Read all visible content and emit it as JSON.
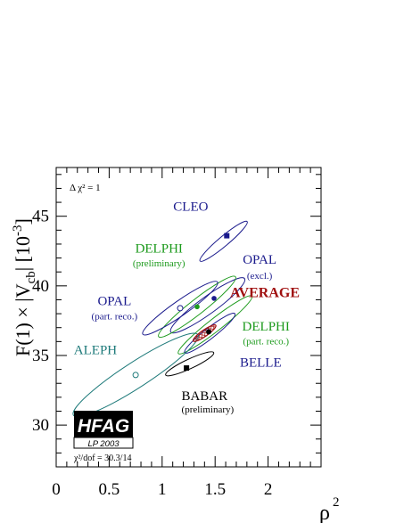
{
  "chart_data": {
    "type": "scatter",
    "xlabel": "ρ",
    "xlabel_exp": "2",
    "ylabel": "F(1) × |V",
    "ylabel_sub": "cb",
    "ylabel_tail": "| [10",
    "ylabel_exp": "-3",
    "ylabel_close": "]",
    "xlim": [
      0,
      2.5
    ],
    "ylim": [
      27,
      48.5
    ],
    "x_ticks": [
      "0",
      "0.5",
      "1",
      "1.5",
      "2"
    ],
    "y_ticks": [
      "30",
      "35",
      "40",
      "45"
    ],
    "delta_chi2": "Δ χ² = 1",
    "footer_chi2": "χ²/dof = 30.3/14",
    "badge": {
      "name": "HFAG",
      "sub": "LP 2003"
    },
    "series": [
      {
        "name": "CLEO",
        "sublabel": "",
        "x": 1.61,
        "y": 43.6,
        "color": "#1a1a8c",
        "marker": "square",
        "ellipse": {
          "cx": 1.58,
          "cy": 43.2,
          "a": 0.29,
          "b": 0.046,
          "angle": 40
        },
        "label_pos": [
          1.27,
          45.4
        ],
        "sublabel_pos": null,
        "anchor": "middle"
      },
      {
        "name": "OPAL",
        "sublabel": "(excl.)",
        "x": 1.49,
        "y": 39.1,
        "color": "#1a1a8c",
        "marker": "dot",
        "ellipse": {
          "cx": 1.43,
          "cy": 38.6,
          "a": 0.43,
          "b": 0.08,
          "angle": 36
        },
        "label_pos": [
          1.92,
          41.6
        ],
        "sublabel_pos": [
          1.92,
          40.5
        ],
        "anchor": "middle"
      },
      {
        "name": "DELPHI",
        "sublabel": "(preliminary)",
        "x": 1.33,
        "y": 38.5,
        "color": "#1c9a1c",
        "marker": "dot",
        "ellipse": {
          "cx": 1.33,
          "cy": 38.5,
          "a": 0.46,
          "b": 0.07,
          "angle": 38
        },
        "label_pos": [
          0.97,
          42.4
        ],
        "sublabel_pos": [
          0.97,
          41.4
        ],
        "anchor": "middle"
      },
      {
        "name": "OPAL",
        "sublabel": "(part. reco.)",
        "x": 1.17,
        "y": 38.4,
        "color": "#1a1a8c",
        "marker": "circle",
        "ellipse": {
          "cx": 1.17,
          "cy": 38.4,
          "a": 0.43,
          "b": 0.07,
          "angle": 35
        },
        "label_pos": [
          0.55,
          38.6
        ],
        "sublabel_pos": [
          0.55,
          37.6
        ],
        "anchor": "middle"
      },
      {
        "name": "DELPHI",
        "sublabel": "(part. reco.)",
        "x": 1.45,
        "y": 37.0,
        "color": "#1c9a1c",
        "marker": "none",
        "ellipse": {
          "cx": 1.5,
          "cy": 37.2,
          "a": 0.44,
          "b": 0.06,
          "angle": 38
        },
        "label_pos": [
          1.98,
          36.8
        ],
        "sublabel_pos": [
          1.98,
          35.8
        ],
        "anchor": "middle"
      },
      {
        "name": "BELLE",
        "sublabel": "",
        "x": 1.46,
        "y": 36.5,
        "color": "#1a1a8c",
        "marker": "none",
        "ellipse": {
          "cx": 1.45,
          "cy": 36.6,
          "a": 0.3,
          "b": 0.05,
          "angle": 38
        },
        "label_pos": [
          1.93,
          34.2
        ],
        "sublabel_pos": null,
        "anchor": "middle"
      },
      {
        "name": "ALEPH",
        "sublabel": "",
        "x": 0.75,
        "y": 33.6,
        "color": "#1e7a7a",
        "marker": "circle",
        "ellipse": {
          "cx": 0.75,
          "cy": 33.6,
          "a": 0.7,
          "b": 0.12,
          "angle": 33
        },
        "label_pos": [
          0.37,
          35.1
        ],
        "sublabel_pos": null,
        "anchor": "middle"
      },
      {
        "name": "BABAR",
        "sublabel": "(preliminary)",
        "x": 1.23,
        "y": 34.1,
        "color": "#000000",
        "marker": "square",
        "ellipse": {
          "cx": 1.26,
          "cy": 34.4,
          "a": 0.25,
          "b": 0.045,
          "angle": 25
        },
        "label_pos": [
          1.4,
          31.8
        ],
        "sublabel_pos": [
          1.43,
          30.9
        ],
        "anchor": "middle"
      },
      {
        "name": "AVERAGE",
        "sublabel": "",
        "x": 1.44,
        "y": 36.7,
        "color": "#a01010",
        "marker": "dot-black",
        "ellipse": {
          "cx": 1.4,
          "cy": 36.6,
          "a": 0.13,
          "b": 0.03,
          "angle": 35
        },
        "label_pos": [
          1.97,
          39.2
        ],
        "sublabel_pos": null,
        "anchor": "middle"
      }
    ]
  }
}
